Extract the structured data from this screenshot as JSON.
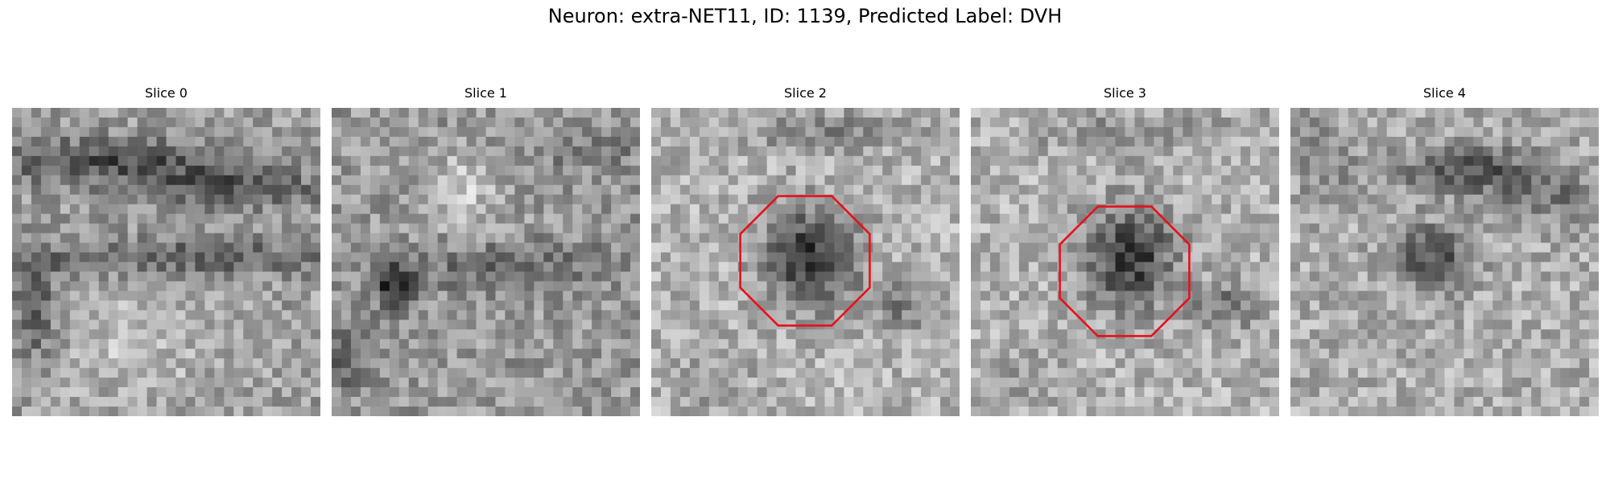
{
  "figure": {
    "title": "Neuron: extra-NET11, ID: 1139, Predicted Label: DVH"
  },
  "slices": [
    {
      "label": "Slice 0",
      "roi": false,
      "pattern": "bands"
    },
    {
      "label": "Slice 1",
      "roi": false,
      "pattern": "noisy"
    },
    {
      "label": "Slice 2",
      "roi": true,
      "pattern": "blob-center"
    },
    {
      "label": "Slice 3",
      "roi": true,
      "pattern": "blob-center"
    },
    {
      "label": "Slice 4",
      "roi": false,
      "pattern": "blob-upper"
    }
  ],
  "roi_color": "#e8101a",
  "colormap": "grayscale",
  "grid_size": 32
}
